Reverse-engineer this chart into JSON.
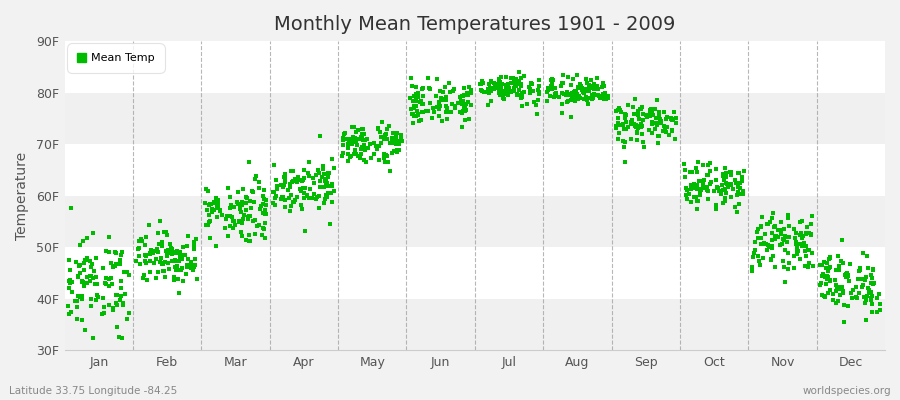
{
  "title": "Monthly Mean Temperatures 1901 - 2009",
  "ylabel": "Temperature",
  "xlabel": "",
  "legend_label": "Mean Temp",
  "marker_color": "#00bb00",
  "marker_size": 5,
  "background_color": "#f2f2f2",
  "plot_bg_color": "#ffffff",
  "band_color_light": "#f0f0f0",
  "band_color_dark": "#e8e8e8",
  "grid_color": "#ffffff",
  "dashed_vline_color": "#999999",
  "ylim_min": 30,
  "ylim_max": 90,
  "yticks": [
    30,
    40,
    50,
    60,
    70,
    80,
    90
  ],
  "ytick_labels": [
    "30F",
    "40F",
    "50F",
    "60F",
    "70F",
    "80F",
    "90F"
  ],
  "months": [
    "Jan",
    "Feb",
    "Mar",
    "Apr",
    "May",
    "Jun",
    "Jul",
    "Aug",
    "Sep",
    "Oct",
    "Nov",
    "Dec"
  ],
  "month_centers": [
    0.5,
    1.5,
    2.5,
    3.5,
    4.5,
    5.5,
    6.5,
    7.5,
    8.5,
    9.5,
    10.5,
    11.5
  ],
  "month_boundaries": [
    0,
    1,
    2,
    3,
    4,
    5,
    6,
    7,
    8,
    9,
    10,
    11,
    12
  ],
  "subtitle_left": "Latitude 33.75 Longitude -84.25",
  "subtitle_right": "worldspecies.org",
  "month_mean_temps": {
    "Jan": 43,
    "Feb": 48,
    "Mar": 57,
    "Apr": 62,
    "May": 70,
    "Jun": 78,
    "Jul": 81,
    "Aug": 80,
    "Sep": 74,
    "Oct": 62,
    "Nov": 51,
    "Dec": 43
  },
  "month_std_temps": {
    "Jan": 4.5,
    "Feb": 2.5,
    "Mar": 3.0,
    "Apr": 2.5,
    "May": 2.0,
    "Jun": 2.0,
    "Jul": 1.5,
    "Aug": 1.5,
    "Sep": 2.0,
    "Oct": 2.0,
    "Nov": 2.5,
    "Dec": 3.0
  },
  "n_years": 109
}
